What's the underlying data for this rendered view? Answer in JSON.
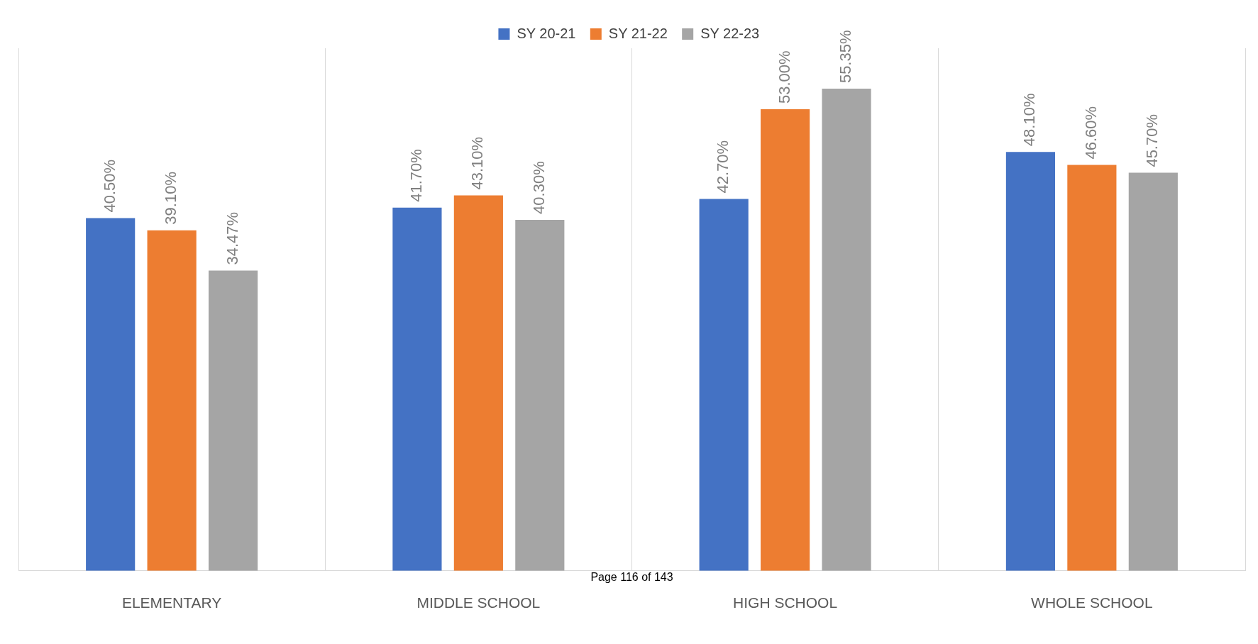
{
  "chart_data": {
    "type": "bar",
    "categories": [
      "ELEMENTARY",
      "MIDDLE SCHOOL",
      "HIGH SCHOOL",
      "WHOLE SCHOOL"
    ],
    "series": [
      {
        "name": "SY 20-21",
        "color": "#4472c4",
        "values": [
          40.5,
          41.7,
          42.7,
          48.1
        ],
        "value_labels": [
          "40.50%",
          "41.70%",
          "42.70%",
          "48.10%"
        ]
      },
      {
        "name": "SY 21-22",
        "color": "#ed7d31",
        "values": [
          39.1,
          43.1,
          53.0,
          46.6
        ],
        "value_labels": [
          "39.10%",
          "43.10%",
          "53.00%",
          "46.60%"
        ]
      },
      {
        "name": "SY 22-23",
        "color": "#a5a5a5",
        "values": [
          34.47,
          40.3,
          55.35,
          45.7
        ],
        "value_labels": [
          "34.47%",
          "40.30%",
          "55.35%",
          "45.70%"
        ]
      }
    ],
    "relative": false,
    "grid": "x",
    "legend": "top",
    "annotations": [
      "Page 116 of 143"
    ]
  }
}
